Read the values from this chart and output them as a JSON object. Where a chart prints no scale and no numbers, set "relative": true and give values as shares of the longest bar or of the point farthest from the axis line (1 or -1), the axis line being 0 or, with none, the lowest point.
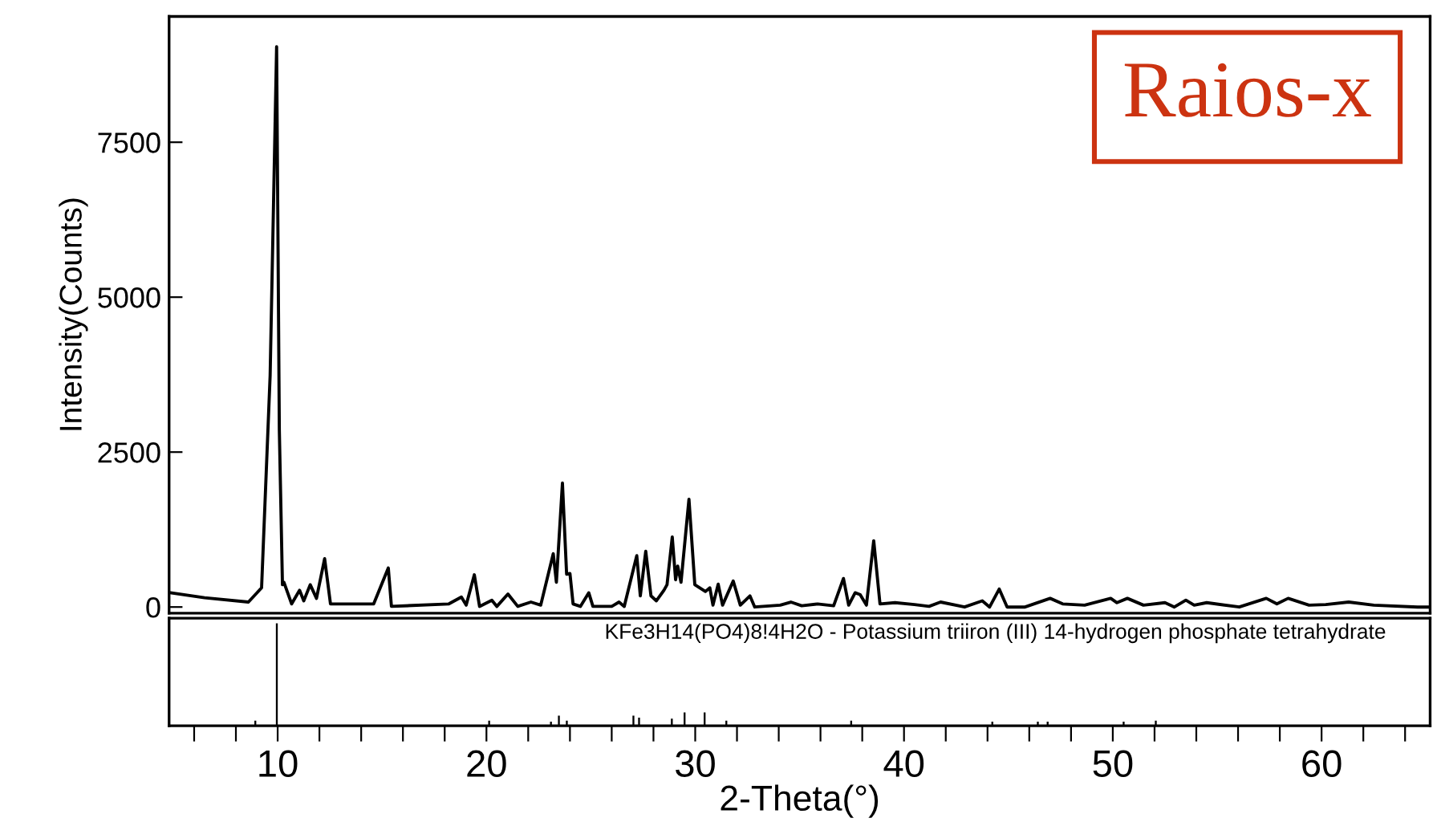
{
  "chart_data": [
    {
      "type": "line",
      "ylabel": "Intensity(Counts)",
      "xlim": [
        4.8,
        65.2
      ],
      "ylim": [
        -100,
        9530
      ],
      "yticks": [
        0,
        2500,
        5000,
        7500
      ],
      "tick_labels": "y",
      "grid": false,
      "color": "#000000",
      "annotations": [
        "Raios-x"
      ],
      "x": [
        4.8,
        6.5,
        8.6,
        9.23,
        9.64,
        9.95,
        10.08,
        10.23,
        10.3,
        10.67,
        11.05,
        11.25,
        11.56,
        11.86,
        12.25,
        12.53,
        14.6,
        15.3,
        15.45,
        18.2,
        18.8,
        19.03,
        19.42,
        19.67,
        20.26,
        20.5,
        21.03,
        21.5,
        22.13,
        22.6,
        23.2,
        23.35,
        23.64,
        23.84,
        24.0,
        24.15,
        24.5,
        24.9,
        25.1,
        26.0,
        26.35,
        26.6,
        27.2,
        27.37,
        27.63,
        27.88,
        28.14,
        28.5,
        28.65,
        28.9,
        29.06,
        29.16,
        29.32,
        29.7,
        29.98,
        30.49,
        30.7,
        30.85,
        31.1,
        31.31,
        31.82,
        32.16,
        32.62,
        32.85,
        34.07,
        34.58,
        35.1,
        35.86,
        36.63,
        37.1,
        37.35,
        37.66,
        37.9,
        38.2,
        38.55,
        38.85,
        39.57,
        40.5,
        41.2,
        41.75,
        42.9,
        43.75,
        44.1,
        44.56,
        44.94,
        45.8,
        47.0,
        47.6,
        48.65,
        49.9,
        50.2,
        50.7,
        51.47,
        52.5,
        52.95,
        53.5,
        53.9,
        54.5,
        56.06,
        57.35,
        57.86,
        58.4,
        59.4,
        60.2,
        61.3,
        62.5,
        64.6,
        65.2
      ],
      "values": [
        234,
        150,
        80,
        310,
        3740,
        9040,
        2860,
        360,
        400,
        50,
        270,
        100,
        360,
        140,
        780,
        50,
        50,
        630,
        10,
        50,
        160,
        30,
        520,
        10,
        110,
        10,
        210,
        10,
        80,
        30,
        860,
        400,
        2000,
        530,
        540,
        50,
        10,
        230,
        10,
        10,
        80,
        10,
        830,
        180,
        900,
        180,
        100,
        270,
        360,
        1130,
        440,
        660,
        400,
        1740,
        360,
        250,
        310,
        30,
        370,
        30,
        420,
        30,
        180,
        0,
        30,
        80,
        20,
        50,
        20,
        460,
        30,
        230,
        200,
        30,
        1070,
        50,
        70,
        40,
        10,
        80,
        0,
        100,
        0,
        290,
        0,
        0,
        140,
        50,
        30,
        140,
        70,
        140,
        30,
        70,
        0,
        110,
        30,
        70,
        0,
        140,
        50,
        140,
        30,
        40,
        80,
        30,
        0,
        0
      ]
    },
    {
      "type": "bar",
      "relative": true,
      "xlabel": "2-Theta(°)",
      "xlim": [
        4.8,
        65.2
      ],
      "tick_labels": "x",
      "color": "#000000",
      "xticks": [
        {
          "value": 6,
          "label": null
        },
        {
          "value": 8,
          "label": null
        },
        10,
        {
          "value": 12,
          "label": null
        },
        {
          "value": 14,
          "label": null
        },
        {
          "value": 16,
          "label": null
        },
        {
          "value": 18,
          "label": null
        },
        20,
        {
          "value": 22,
          "label": null
        },
        {
          "value": 24,
          "label": null
        },
        {
          "value": 26,
          "label": null
        },
        {
          "value": 28,
          "label": null
        },
        30,
        {
          "value": 32,
          "label": null
        },
        {
          "value": 34,
          "label": null
        },
        {
          "value": 36,
          "label": null
        },
        {
          "value": 38,
          "label": null
        },
        40,
        {
          "value": 42,
          "label": null
        },
        {
          "value": 44,
          "label": null
        },
        {
          "value": 46,
          "label": null
        },
        {
          "value": 48,
          "label": null
        },
        50,
        {
          "value": 52,
          "label": null
        },
        {
          "value": 54,
          "label": null
        },
        {
          "value": 56,
          "label": null
        },
        {
          "value": 58,
          "label": null
        },
        60,
        {
          "value": 62,
          "label": null
        },
        {
          "value": 64,
          "label": null
        }
      ],
      "annotations": [
        "KFe3H14(PO4)8!4H2O - Potassium triiron (III) 14-hydrogen phosphate tetrahydrate"
      ],
      "x": [
        8.93,
        9.96,
        20.13,
        23.09,
        23.47,
        23.85,
        27.04,
        27.31,
        28.88,
        29.49,
        30.45,
        31.49,
        37.47,
        44.23,
        46.41,
        46.88,
        50.52,
        52.06
      ],
      "values": [
        0.05,
        1,
        0.05,
        0.04,
        0.1,
        0.05,
        0.1,
        0.08,
        0.07,
        0.13,
        0.13,
        0.05,
        0.05,
        0.04,
        0.04,
        0.04,
        0.04,
        0.05
      ]
    }
  ]
}
